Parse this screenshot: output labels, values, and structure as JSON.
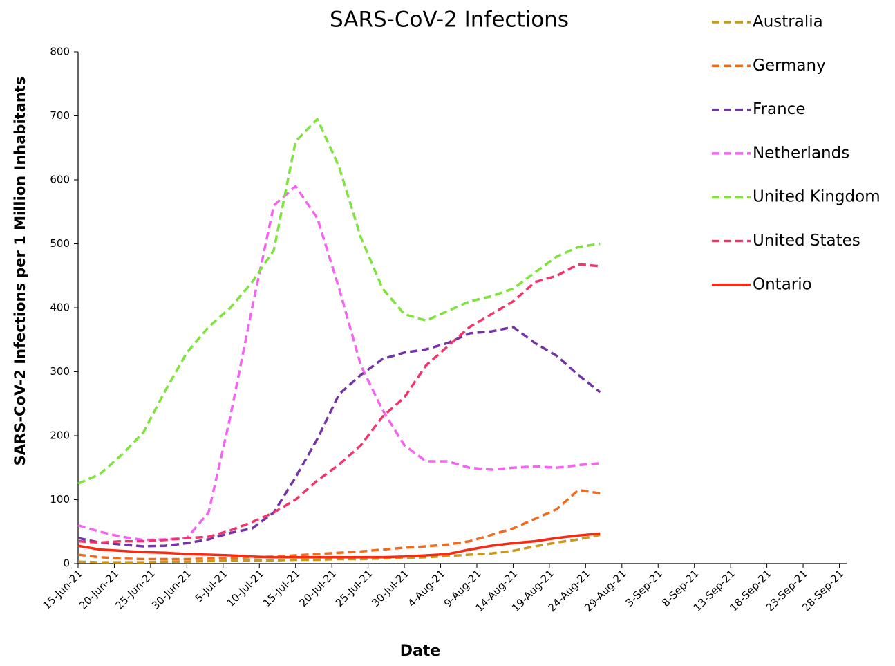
{
  "chart_data": {
    "type": "line",
    "title": "SARS-CoV-2 Infections",
    "x_label": "Date",
    "y_label": "SARS-CoV-2 Infections per 1 Million Inhabitants",
    "x": [
      "2021-06-15",
      "2021-06-18",
      "2021-06-21",
      "2021-06-24",
      "2021-06-27",
      "2021-06-30",
      "2021-07-03",
      "2021-07-06",
      "2021-07-09",
      "2021-07-12",
      "2021-07-15",
      "2021-07-18",
      "2021-07-21",
      "2021-07-24",
      "2021-07-27",
      "2021-07-30",
      "2021-08-02",
      "2021-08-05",
      "2021-08-08",
      "2021-08-11",
      "2021-08-14",
      "2021-08-17",
      "2021-08-20",
      "2021-08-23",
      "2021-08-26"
    ],
    "xlim": [
      "2021-06-15",
      "2021-09-29"
    ],
    "xticks": [
      {
        "value": "2021-06-15",
        "label": "15-Jun-21"
      },
      {
        "value": "2021-06-20",
        "label": "20-Jun-21"
      },
      {
        "value": "2021-06-25",
        "label": "25-Jun-21"
      },
      {
        "value": "2021-06-30",
        "label": "30-Jun-21"
      },
      {
        "value": "2021-07-05",
        "label": "5-Jul-21"
      },
      {
        "value": "2021-07-10",
        "label": "10-Jul-21"
      },
      {
        "value": "2021-07-15",
        "label": "15-Jul-21"
      },
      {
        "value": "2021-07-20",
        "label": "20-Jul-21"
      },
      {
        "value": "2021-07-25",
        "label": "25-Jul-21"
      },
      {
        "value": "2021-07-30",
        "label": "30-Jul-21"
      },
      {
        "value": "2021-08-04",
        "label": "4-Aug-21"
      },
      {
        "value": "2021-08-09",
        "label": "9-Aug-21"
      },
      {
        "value": "2021-08-14",
        "label": "14-Aug-21"
      },
      {
        "value": "2021-08-19",
        "label": "19-Aug-21"
      },
      {
        "value": "2021-08-24",
        "label": "24-Aug-21"
      },
      {
        "value": "2021-08-29",
        "label": "29-Aug-21"
      },
      {
        "value": "2021-09-03",
        "label": "3-Sep-21"
      },
      {
        "value": "2021-09-08",
        "label": "8-Sep-21"
      },
      {
        "value": "2021-09-13",
        "label": "13-Sep-21"
      },
      {
        "value": "2021-09-18",
        "label": "18-Sep-21"
      },
      {
        "value": "2021-09-23",
        "label": "23-Sep-21"
      },
      {
        "value": "2021-09-28",
        "label": "28-Sep-21"
      }
    ],
    "ylim": [
      0,
      800
    ],
    "yticks": [
      0,
      100,
      200,
      300,
      400,
      500,
      600,
      700,
      800
    ],
    "grid": false,
    "legend": "right",
    "series": [
      {
        "name": "Australia",
        "color": "#c9991c",
        "dashed": true,
        "values": [
          3,
          2,
          2,
          2,
          3,
          3,
          4,
          5,
          5,
          5,
          6,
          6,
          7,
          7,
          8,
          9,
          10,
          12,
          14,
          16,
          20,
          27,
          33,
          38,
          45
        ]
      },
      {
        "name": "Germany",
        "color": "#f26b1d",
        "dashed": true,
        "values": [
          14,
          10,
          8,
          7,
          7,
          7,
          8,
          9,
          10,
          11,
          13,
          15,
          17,
          19,
          22,
          25,
          27,
          30,
          35,
          45,
          55,
          70,
          85,
          115,
          110
        ]
      },
      {
        "name": "France",
        "color": "#7334a6",
        "dashed": true,
        "values": [
          40,
          33,
          30,
          27,
          28,
          32,
          38,
          48,
          55,
          80,
          135,
          195,
          265,
          295,
          320,
          330,
          335,
          345,
          360,
          363,
          370,
          345,
          325,
          295,
          268
        ]
      },
      {
        "name": "Netherlands",
        "color": "#f464f0",
        "dashed": true,
        "values": [
          60,
          50,
          42,
          37,
          38,
          40,
          80,
          230,
          400,
          560,
          590,
          540,
          430,
          310,
          240,
          185,
          160,
          160,
          150,
          147,
          150,
          152,
          150,
          154,
          157
        ]
      },
      {
        "name": "United Kingdom",
        "color": "#7ee33c",
        "dashed": true,
        "values": [
          125,
          140,
          170,
          205,
          270,
          330,
          370,
          400,
          440,
          490,
          660,
          695,
          620,
          510,
          430,
          390,
          380,
          395,
          410,
          418,
          430,
          455,
          480,
          495,
          500
        ]
      },
      {
        "name": "United States",
        "color": "#f2346a",
        "dashed": true,
        "values": [
          35,
          33,
          35,
          35,
          37,
          40,
          42,
          52,
          65,
          80,
          100,
          130,
          155,
          185,
          230,
          260,
          310,
          340,
          370,
          390,
          410,
          440,
          450,
          468,
          465
        ]
      },
      {
        "name": "Ontario",
        "color": "#f92a12",
        "dashed": false,
        "values": [
          28,
          22,
          20,
          18,
          17,
          15,
          14,
          13,
          11,
          10,
          10,
          10,
          10,
          10,
          10,
          11,
          13,
          15,
          22,
          28,
          32,
          35,
          40,
          44,
          47
        ]
      }
    ]
  }
}
